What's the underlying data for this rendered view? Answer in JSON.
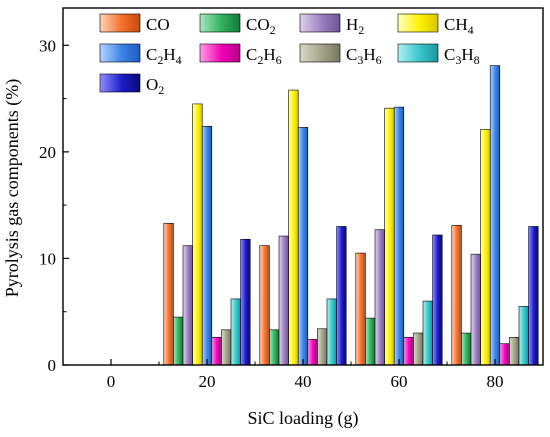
{
  "chart_data": {
    "type": "bar",
    "xlabel": "SiC loading (g)",
    "ylabel": "Pyrolysis gas components (%)",
    "x_ticks": [
      "0",
      "20",
      "40",
      "60",
      "80"
    ],
    "y_ticks": [
      "0",
      "10",
      "20",
      "30"
    ],
    "xlim": [
      -10,
      90
    ],
    "ylim": [
      0,
      33.5
    ],
    "categories": [
      "20",
      "40",
      "60",
      "80"
    ],
    "series": [
      {
        "name": "CO",
        "base": "CO",
        "sub": "",
        "color_light": "#ffd2b8",
        "color": "#f4702b",
        "color_dark": "#c94a10",
        "values": [
          13.3,
          11.2,
          10.5,
          13.1
        ]
      },
      {
        "name": "CO2",
        "base": "CO",
        "sub": "2",
        "color_light": "#a6e8bf",
        "color": "#2fb15e",
        "color_dark": "#157a3a",
        "values": [
          4.5,
          3.3,
          4.4,
          3.0
        ]
      },
      {
        "name": "H2",
        "base": "H",
        "sub": "2",
        "color_light": "#ded2ec",
        "color": "#9a7fbf",
        "color_dark": "#6f5596",
        "values": [
          11.2,
          12.1,
          12.7,
          10.4
        ]
      },
      {
        "name": "CH4",
        "base": "CH",
        "sub": "4",
        "color_light": "#ffffc0",
        "color": "#fff200",
        "color_dark": "#d9c600",
        "values": [
          24.5,
          25.8,
          24.1,
          22.1
        ]
      },
      {
        "name": "C2H4",
        "base": "C",
        "sub": "2",
        "base2": "H",
        "sub2": "4",
        "color_light": "#b5d4ff",
        "color": "#3b82e8",
        "color_dark": "#1f5cbf",
        "values": [
          22.4,
          22.3,
          24.2,
          28.1
        ]
      },
      {
        "name": "C2H6",
        "base": "C",
        "sub": "2",
        "base2": "H",
        "sub2": "6",
        "color_light": "#ff9ee6",
        "color": "#f000b4",
        "color_dark": "#b8008a",
        "values": [
          2.6,
          2.4,
          2.6,
          2.0
        ]
      },
      {
        "name": "C3H6",
        "base": "C",
        "sub": "3",
        "base2": "H",
        "sub2": "6",
        "color_light": "#d8d8c8",
        "color": "#a3a38a",
        "color_dark": "#77775f",
        "values": [
          3.3,
          3.4,
          3.0,
          2.6
        ]
      },
      {
        "name": "C3H8",
        "base": "C",
        "sub": "3",
        "base2": "H",
        "sub2": "8",
        "color_light": "#b0f0f2",
        "color": "#37c6cc",
        "color_dark": "#1b969b",
        "values": [
          6.2,
          6.2,
          6.0,
          5.5
        ]
      },
      {
        "name": "O2",
        "base": "O",
        "sub": "2",
        "color_light": "#8f8fff",
        "color": "#1c1cc7",
        "color_dark": "#0a0a7a",
        "values": [
          11.8,
          13.0,
          12.2,
          13.0
        ]
      }
    ],
    "legend_position": "top",
    "grid": false
  }
}
